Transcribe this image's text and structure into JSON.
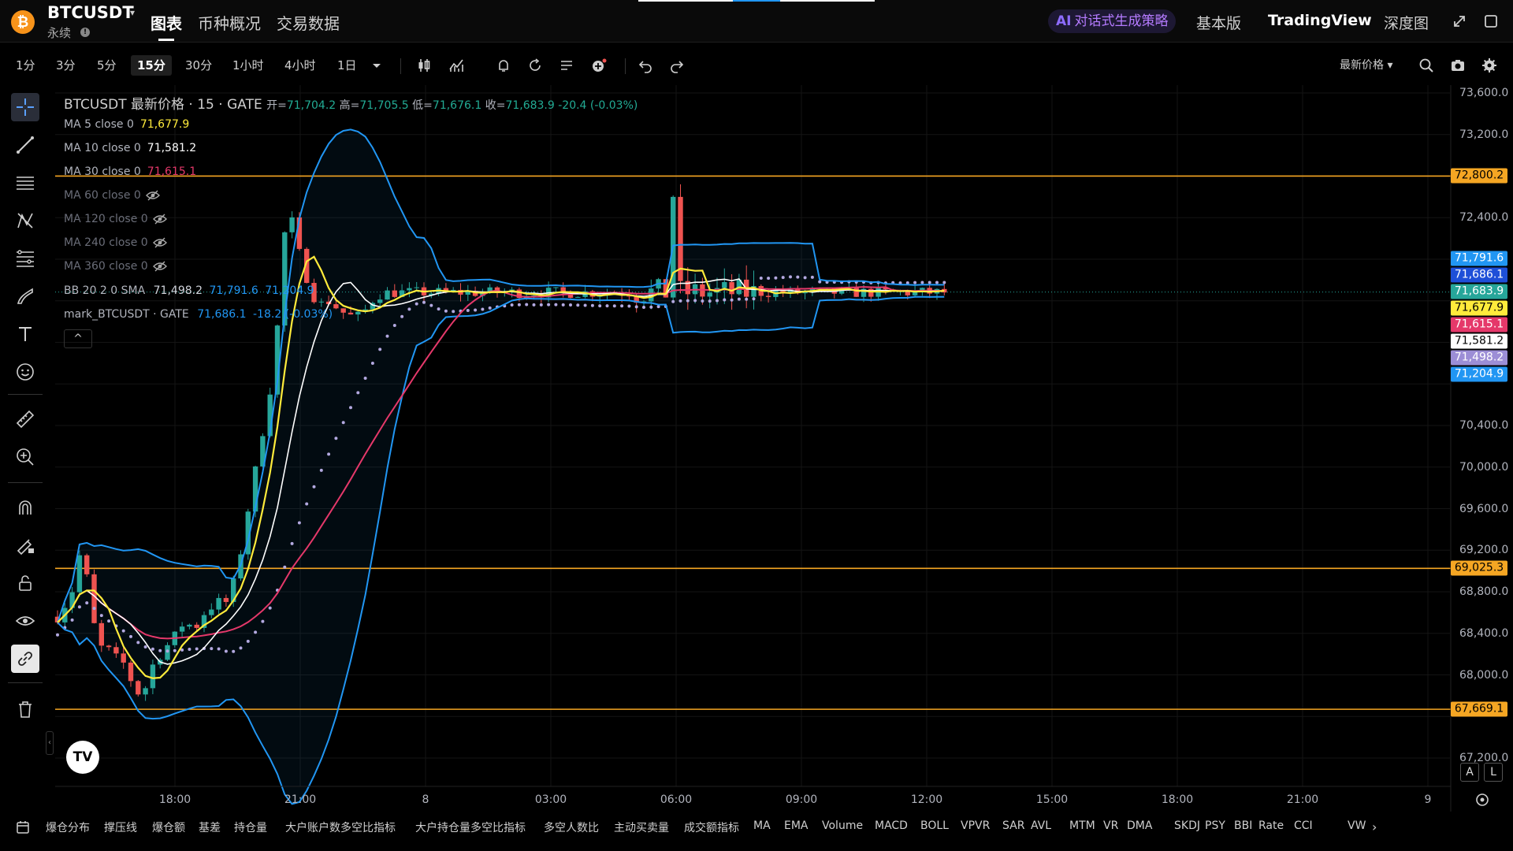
{
  "header": {
    "symbol": "BTCUSDT",
    "contract_type": "永续",
    "logo_char": "₿",
    "tabs": [
      {
        "label": "图表",
        "active": true
      },
      {
        "label": "币种概况",
        "active": false
      },
      {
        "label": "交易数据",
        "active": false
      }
    ],
    "ai_strategy": "对话式生成策略",
    "ai_mark": "AI",
    "right_tabs": [
      {
        "label": "基本版",
        "active": false
      },
      {
        "label": "TradingView",
        "active": true
      },
      {
        "label": "深度图",
        "active": false
      }
    ]
  },
  "toolbar": {
    "intervals": [
      "1分",
      "3分",
      "5分",
      "15分",
      "30分",
      "1小时",
      "4小时",
      "1日"
    ],
    "active_interval": "15分",
    "price_type": "最新价格"
  },
  "legend": {
    "title": "BTCUSDT 最新价格 · 15 · GATE",
    "open_label": "开=",
    "open": "71,704.2",
    "high_label": "高=",
    "high": "71,705.5",
    "low_label": "低=",
    "low": "71,676.1",
    "close_label": "收=",
    "close": "71,683.9",
    "change": "-20.4 (-0.03%)",
    "indicators": [
      {
        "name": "MA 5 close 0",
        "value": "71,677.9",
        "color": "#ffeb3b",
        "hidden": false
      },
      {
        "name": "MA 10 close 0",
        "value": "71,581.2",
        "color": "#ffffff",
        "hidden": false
      },
      {
        "name": "MA 30 close 0",
        "value": "71,615.1",
        "color": "#e5386a",
        "hidden": false
      },
      {
        "name": "MA 60 close 0",
        "value": "",
        "color": "",
        "hidden": true
      },
      {
        "name": "MA 120 close 0",
        "value": "",
        "color": "",
        "hidden": true
      },
      {
        "name": "MA 240 close 0",
        "value": "",
        "color": "",
        "hidden": true
      },
      {
        "name": "MA 360 close 0",
        "value": "",
        "color": "",
        "hidden": true
      }
    ],
    "bb_name": "BB 20 2 0 SMA",
    "bb_values": [
      "71,498.2",
      "71,791.6",
      "71,204.9"
    ],
    "mark_name": "mark_BTCUSDT · GATE",
    "mark_value": "71,686.1",
    "mark_change": "-18.2 (-0.03%)",
    "collapse_glyph": "^"
  },
  "price_axis": {
    "ticks": [
      "73,600.0",
      "73,200.0",
      "72,400.0",
      "70,400.0",
      "70,000.0",
      "69,600.0",
      "69,200.0",
      "68,800.0",
      "68,400.0",
      "68,000.0",
      "67,200.0"
    ],
    "tags": [
      {
        "label": "72,800.2",
        "bg": "#f5a623",
        "fg": "#000"
      },
      {
        "label": "71,791.6",
        "bg": "#2196f3",
        "fg": "#fff"
      },
      {
        "label": "71,686.1",
        "bg": "#1e4fd8",
        "fg": "#fff"
      },
      {
        "label": "71,683.9",
        "bg": "#26a69a",
        "fg": "#fff"
      },
      {
        "label": "71,677.9",
        "bg": "#ffeb3b",
        "fg": "#000"
      },
      {
        "label": "71,615.1",
        "bg": "#e5386a",
        "fg": "#fff"
      },
      {
        "label": "71,581.2",
        "bg": "#ffffff",
        "fg": "#000"
      },
      {
        "label": "71,498.2",
        "bg": "#9c8ed6",
        "fg": "#fff"
      },
      {
        "label": "71,204.9",
        "bg": "#2196f3",
        "fg": "#fff"
      },
      {
        "label": "69,025.3",
        "bg": "#f5a623",
        "fg": "#000"
      },
      {
        "label": "67,669.1",
        "bg": "#f5a623",
        "fg": "#000"
      }
    ],
    "toggle_a": "A",
    "toggle_l": "L"
  },
  "time_axis": {
    "ticks": [
      "18:00",
      "21:00",
      "8",
      "03:00",
      "06:00",
      "09:00",
      "12:00",
      "15:00",
      "18:00",
      "21:00",
      "9"
    ]
  },
  "bottom_indicators": [
    "爆仓分布",
    "撑压线",
    "爆仓额",
    "基差",
    "持仓量",
    "大户账户数多空比指标",
    "大户持仓量多空比指标",
    "多空人数比",
    "主动买卖量",
    "成交额指标",
    "MA",
    "EMA",
    "Volume",
    "MACD",
    "BOLL",
    "VPVR",
    "SAR",
    "AVL",
    "MTM",
    "VR",
    "DMA",
    "SKDJ",
    "PSY",
    "BBI",
    "Rate",
    "CCI",
    "VW"
  ],
  "tv_logo": "TV",
  "colors": {
    "up": "#26a69a",
    "down": "#ef5350",
    "ma5": "#ffeb3b",
    "ma10": "#ffffff",
    "ma30": "#e5386a",
    "boll": "#2196f3",
    "sar": "#b3a9e0",
    "hline": "#f5a623"
  }
}
